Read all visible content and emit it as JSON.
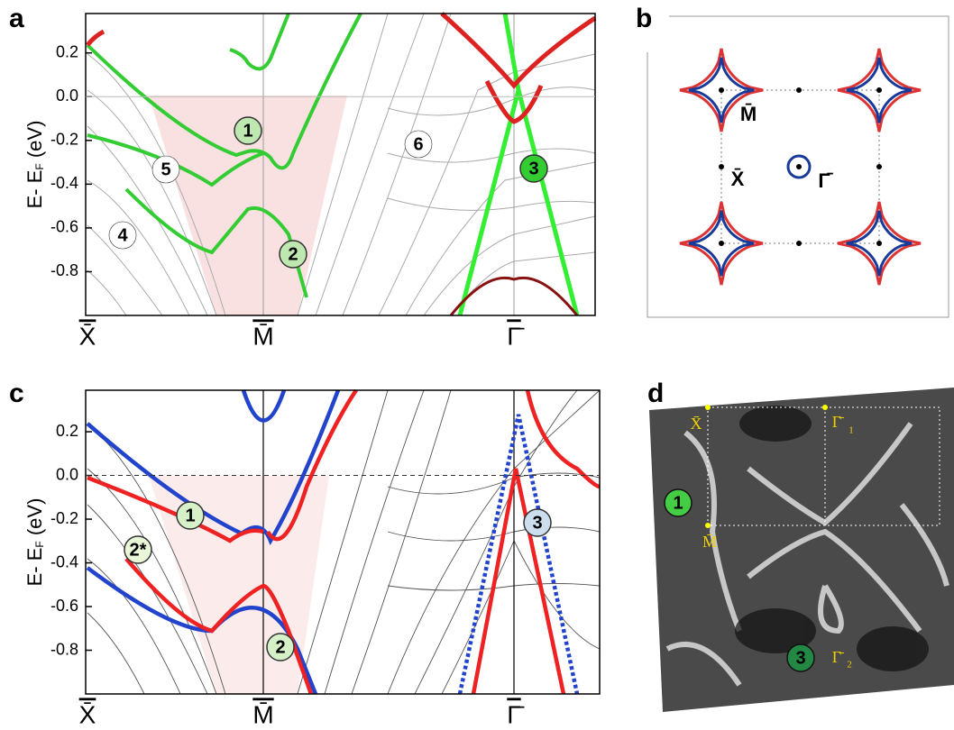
{
  "chart_data": [
    {
      "type": "line",
      "panel": "a",
      "ylabel": [
        "E- E",
        "F",
        " (eV)"
      ],
      "ylim": [
        -1.0,
        0.38
      ],
      "yticks": [
        0.2,
        {
          "value": 0,
          "label": "0.0"
        },
        -0.2,
        -0.4,
        -0.6,
        -0.8
      ],
      "categories": [
        "X̄",
        "M̄",
        "Γ̄"
      ],
      "annotations": [
        "1",
        "2",
        "3",
        "4",
        "5",
        "6"
      ]
    },
    {
      "type": "line",
      "panel": "c",
      "ylabel": [
        "E- E",
        "F",
        " (eV)"
      ],
      "ylim": [
        -1.0,
        0.39
      ],
      "yticks": [
        0.2,
        {
          "value": 0,
          "label": "0.0"
        },
        -0.2,
        -0.4,
        -0.6,
        -0.8
      ],
      "categories": [
        "X̄",
        "M̄",
        "Γ̄"
      ],
      "annotations": [
        "1",
        "2*",
        "2",
        "3"
      ]
    }
  ],
  "panel_b": {
    "letter": "b",
    "labels": [
      "M̄",
      "X̄",
      "Γ̄"
    ]
  },
  "panel_d": {
    "letter": "d",
    "labels": [
      "X̄",
      "Γ̄",
      "1",
      "M̄",
      "Γ̄",
      "2"
    ],
    "annotations": [
      "1",
      "3"
    ]
  }
}
